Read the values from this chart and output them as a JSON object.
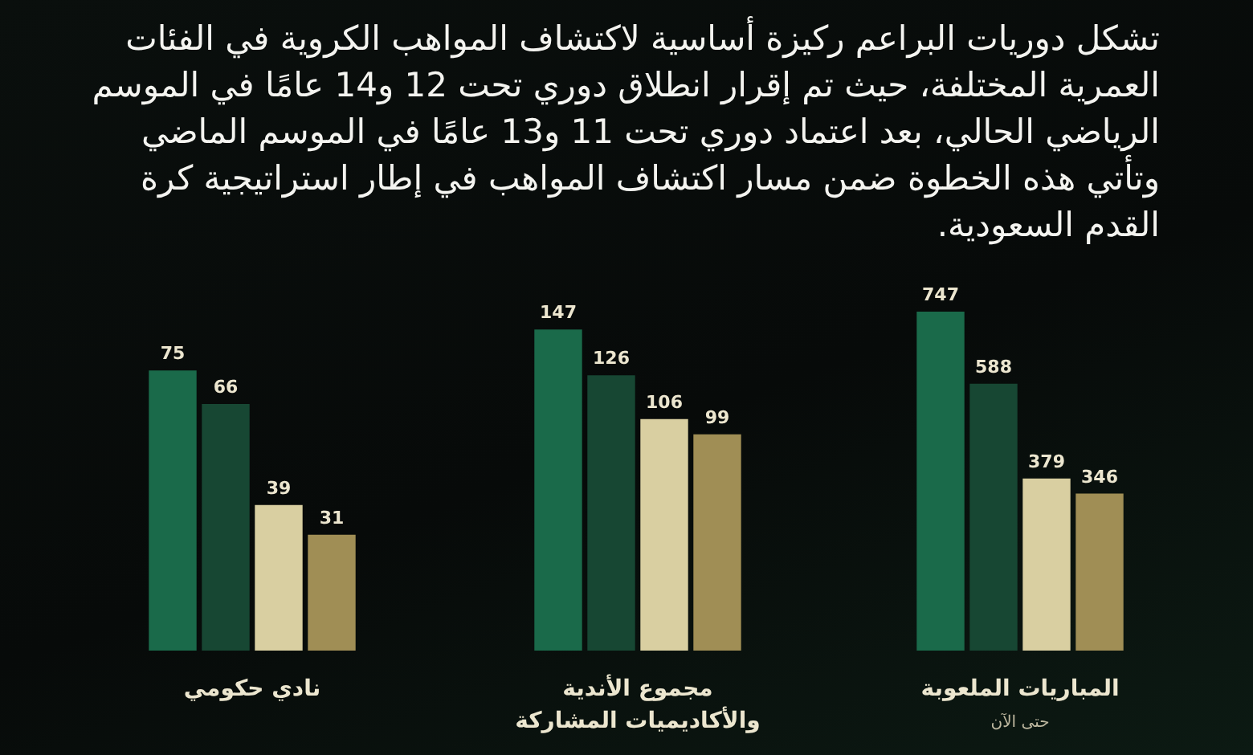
{
  "chart_data": [
    {
      "type": "other",
      "title": "تشكل دوريات البراعم ركيزة أساسية لاكتشاف المواهب الكروية في الفئات العمرية المختلفة، حيث تم إقرار انطلاق دوري تحت 12 و14 عامًا في الموسم الرياضي الحالي، بعد اعتماد دوري تحت 11 و13 عامًا في الموسم الماضي وتأتي هذه الخطوة ضمن مسار اكتشاف المواهب في إطار استراتيجية كرة القدم السعودية."
    },
    {
      "type": "bar",
      "xlabel": "المباريات الملعوبة",
      "annotations": [
        "حتى الآن"
      ],
      "categories": [
        null,
        null,
        null,
        null
      ],
      "values": [
        747,
        588,
        379,
        346
      ],
      "colors": [
        "#1a6a4a",
        "#174733",
        "#d9cfa1",
        "#a08e55"
      ],
      "data_labels": true
    },
    {
      "type": "bar",
      "xlabel": "مجموع الأندية والأكاديميات المشاركة",
      "categories": [
        null,
        null,
        null,
        null
      ],
      "values": [
        147,
        126,
        106,
        99
      ],
      "colors": [
        "#1a6a4a",
        "#174733",
        "#d9cfa1",
        "#a08e55"
      ],
      "data_labels": true
    },
    {
      "type": "bar",
      "xlabel": "نادي حكومي",
      "categories": [
        null,
        null,
        null,
        null
      ],
      "values": [
        75,
        66,
        39,
        31
      ],
      "colors": [
        "#1a6a4a",
        "#174733",
        "#d9cfa1",
        "#a08e55"
      ],
      "data_labels": true
    }
  ]
}
